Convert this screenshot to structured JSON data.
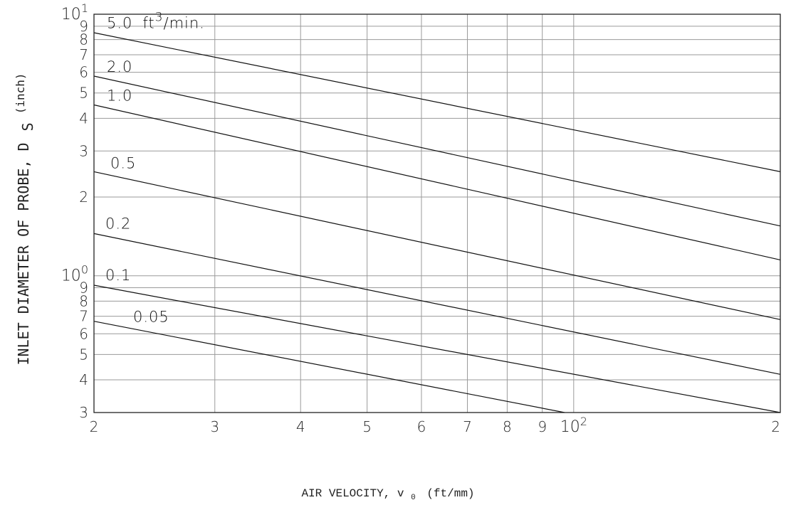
{
  "chart_data": {
    "type": "line",
    "title": "",
    "x_scale": "log",
    "y_scale": "log",
    "xlim": [
      20,
      200
    ],
    "ylim": [
      0.3,
      10
    ],
    "grid": true,
    "xlabel": "AIR VELOCITY, v",
    "xlabel_sub": "0",
    "xlabel_unit": "(ft/mm)",
    "ylabel": "INLET DIAMETER OF PROBE, D",
    "ylabel_sub": "S",
    "ylabel_unit": "(inch)",
    "x_tick_labels": [
      {
        "v": 20,
        "base": "2",
        "exp": ""
      },
      {
        "v": 30,
        "base": "3",
        "exp": ""
      },
      {
        "v": 40,
        "base": "4",
        "exp": ""
      },
      {
        "v": 50,
        "base": "5",
        "exp": ""
      },
      {
        "v": 60,
        "base": "6",
        "exp": ""
      },
      {
        "v": 70,
        "base": "7",
        "exp": ""
      },
      {
        "v": 80,
        "base": "8",
        "exp": ""
      },
      {
        "v": 90,
        "base": "9",
        "exp": ""
      },
      {
        "v": 100,
        "base": "10",
        "exp": "2"
      },
      {
        "v": 200,
        "base": "2",
        "exp": ""
      }
    ],
    "y_tick_labels": [
      {
        "v": 0.3,
        "base": "3",
        "exp": ""
      },
      {
        "v": 0.4,
        "base": "4",
        "exp": ""
      },
      {
        "v": 0.5,
        "base": "5",
        "exp": ""
      },
      {
        "v": 0.6,
        "base": "6",
        "exp": ""
      },
      {
        "v": 0.7,
        "base": "7",
        "exp": ""
      },
      {
        "v": 0.8,
        "base": "8",
        "exp": ""
      },
      {
        "v": 0.9,
        "base": "9",
        "exp": ""
      },
      {
        "v": 1,
        "base": "10",
        "exp": "0"
      },
      {
        "v": 2,
        "base": "2",
        "exp": ""
      },
      {
        "v": 3,
        "base": "3",
        "exp": ""
      },
      {
        "v": 4,
        "base": "4",
        "exp": ""
      },
      {
        "v": 5,
        "base": "5",
        "exp": ""
      },
      {
        "v": 6,
        "base": "6",
        "exp": ""
      },
      {
        "v": 7,
        "base": "7",
        "exp": ""
      },
      {
        "v": 8,
        "base": "8",
        "exp": ""
      },
      {
        "v": 9,
        "base": "9",
        "exp": ""
      },
      {
        "v": 10,
        "base": "10",
        "exp": "1"
      }
    ],
    "series": [
      {
        "label": "5.0",
        "unit": "ft",
        "unit_exp": "3",
        "unit_rest": "/min.",
        "x": [
          20,
          200
        ],
        "y": [
          8.5,
          2.5
        ]
      },
      {
        "label": "2.0",
        "x": [
          20,
          200
        ],
        "y": [
          5.8,
          1.55
        ]
      },
      {
        "label": "1.0",
        "x": [
          20,
          200
        ],
        "y": [
          4.5,
          1.15
        ]
      },
      {
        "label": "0.5",
        "x": [
          20,
          200
        ],
        "y": [
          2.5,
          0.68
        ]
      },
      {
        "label": "0.2",
        "x": [
          20,
          200
        ],
        "y": [
          1.45,
          0.42
        ]
      },
      {
        "label": "0.1",
        "x": [
          20,
          200
        ],
        "y": [
          0.92,
          0.3
        ]
      },
      {
        "label": "0.05",
        "x": [
          20,
          97
        ],
        "y": [
          0.67,
          0.3
        ]
      }
    ]
  }
}
